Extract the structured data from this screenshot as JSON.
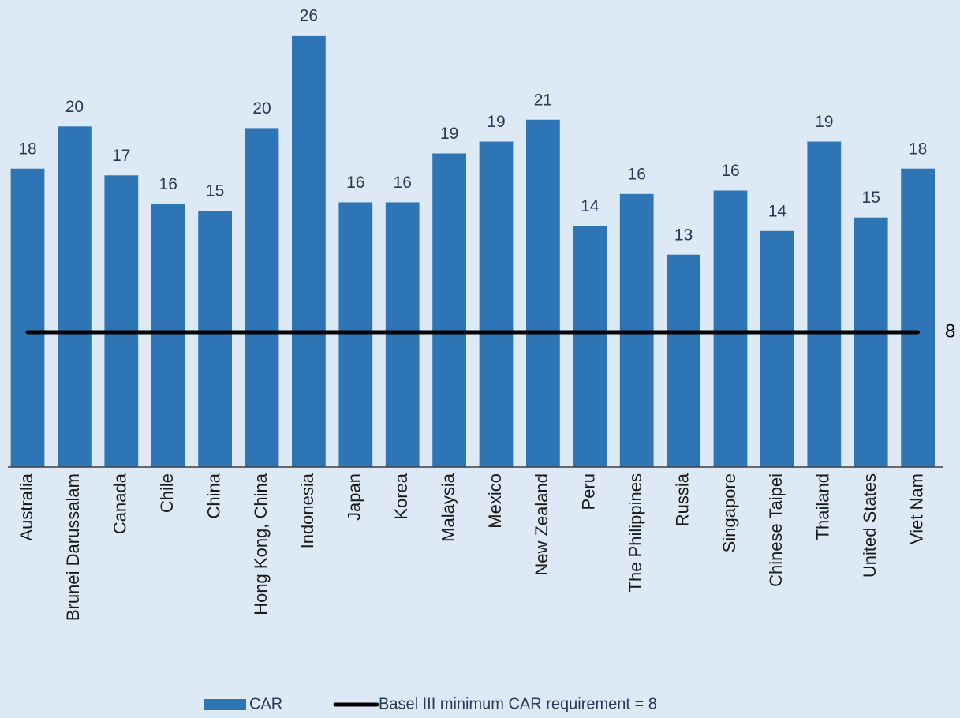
{
  "chart_data": {
    "type": "bar",
    "categories": [
      "Australia",
      "Brunei Darussalam",
      "Canada",
      "Chile",
      "China",
      "Hong Kong, China",
      "Indonesia",
      "Japan",
      "Korea",
      "Malaysia",
      "Mexico",
      "New Zealand",
      "Peru",
      "The Philippines",
      "Russia",
      "Singapore",
      "Chinese Taipei",
      "Thailand",
      "United States",
      "Viet Nam"
    ],
    "series": [
      {
        "name": "CAR",
        "color": "#2e75b6",
        "values": [
          17.7,
          20.2,
          17.3,
          15.6,
          15.2,
          20.1,
          25.6,
          15.7,
          15.7,
          18.6,
          19.3,
          20.6,
          14.3,
          16.2,
          12.6,
          16.4,
          14.0,
          19.3,
          14.8,
          17.7
        ],
        "value_labels": [
          "18",
          "20",
          "17",
          "16",
          "15",
          "20",
          "26",
          "16",
          "16",
          "19",
          "19",
          "21",
          "14",
          "16",
          "13",
          "16",
          "14",
          "19",
          "15",
          "18"
        ]
      }
    ],
    "threshold": {
      "name": "Basel III minimum CAR requirement = 8",
      "value": 8,
      "color": "#000000"
    },
    "ylim": [
      0,
      27.7
    ]
  }
}
